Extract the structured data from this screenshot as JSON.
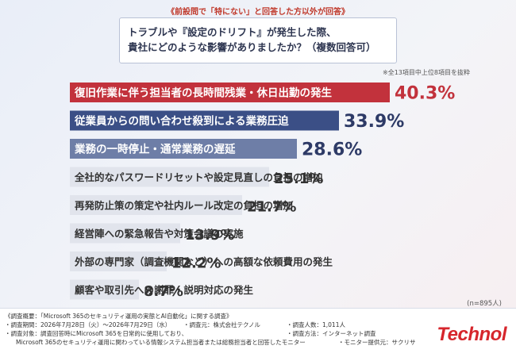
{
  "condition": "《前設問で「特にない」と回答した方以外が回答》",
  "question_line1": "トラブルや『設定のドリフト』が発生した際、",
  "question_line2": "貴社にどのような影響がありましたか？（複数回答可）",
  "note": "※全13項目中上位8項目を抜粋",
  "sample_size": "(n=895人)",
  "chart_data": {
    "type": "bar",
    "orientation": "horizontal",
    "unit": "%",
    "xlim": [
      0,
      50
    ],
    "categories": [
      "復旧作業に伴う担当者の長時間残業・休日出勤の発生",
      "従業員からの問い合わせ殺到による業務圧迫",
      "業務の一時停止・通常業務の遅延",
      "全社的なパスワードリセットや設定見直しの負担の増加",
      "再発防止策の策定や社内ルール改定の負担の増加",
      "経営陣への緊急報告や対策会議の実施",
      "外部の専門家（調査機関など）への高額な依頼費用の発生",
      "顧客や取引先への謝罪・説明対応の発生"
    ],
    "values": [
      40.3,
      33.9,
      28.6,
      25.1,
      21.7,
      13.9,
      12.2,
      8.7
    ],
    "value_labels": [
      "40.3%",
      "33.9%",
      "28.6%",
      "25.1%",
      "21.7%",
      "13.9%",
      "12.2%",
      "8.7%"
    ],
    "colors": {
      "top1": "#c2323c",
      "top2": "#3b4f86",
      "top3": "#6e7ea7",
      "rest": "#e1e4ec",
      "text_dark": "#333333",
      "text_light": "#ffffff",
      "top1_value": "#c2323c",
      "top2_value": "#2d3a66"
    }
  },
  "footer": {
    "survey_title": "《調査概要：「Microsoft 365のセキュリティ運用の実態とAI自動化」に関する調査》",
    "period": "・調査期間：2026年7月28日（火）〜2026年7月29日（水）",
    "organizer": "・調査元：株式会社テクノル",
    "respondents": "・調査人数：1,011人",
    "target_line1": "・調査対象：調査回答時にMicrosoft 365を日常的に使用しており、",
    "method": "・調査方法：インターネット調査",
    "target_line2": "Microsoft 365のセキュリティ運用に関わっている情報システム担当者または総務担当者と回答したモニター",
    "provider": "・モニター提供元：サクリサ"
  },
  "logo_text": "Technol"
}
